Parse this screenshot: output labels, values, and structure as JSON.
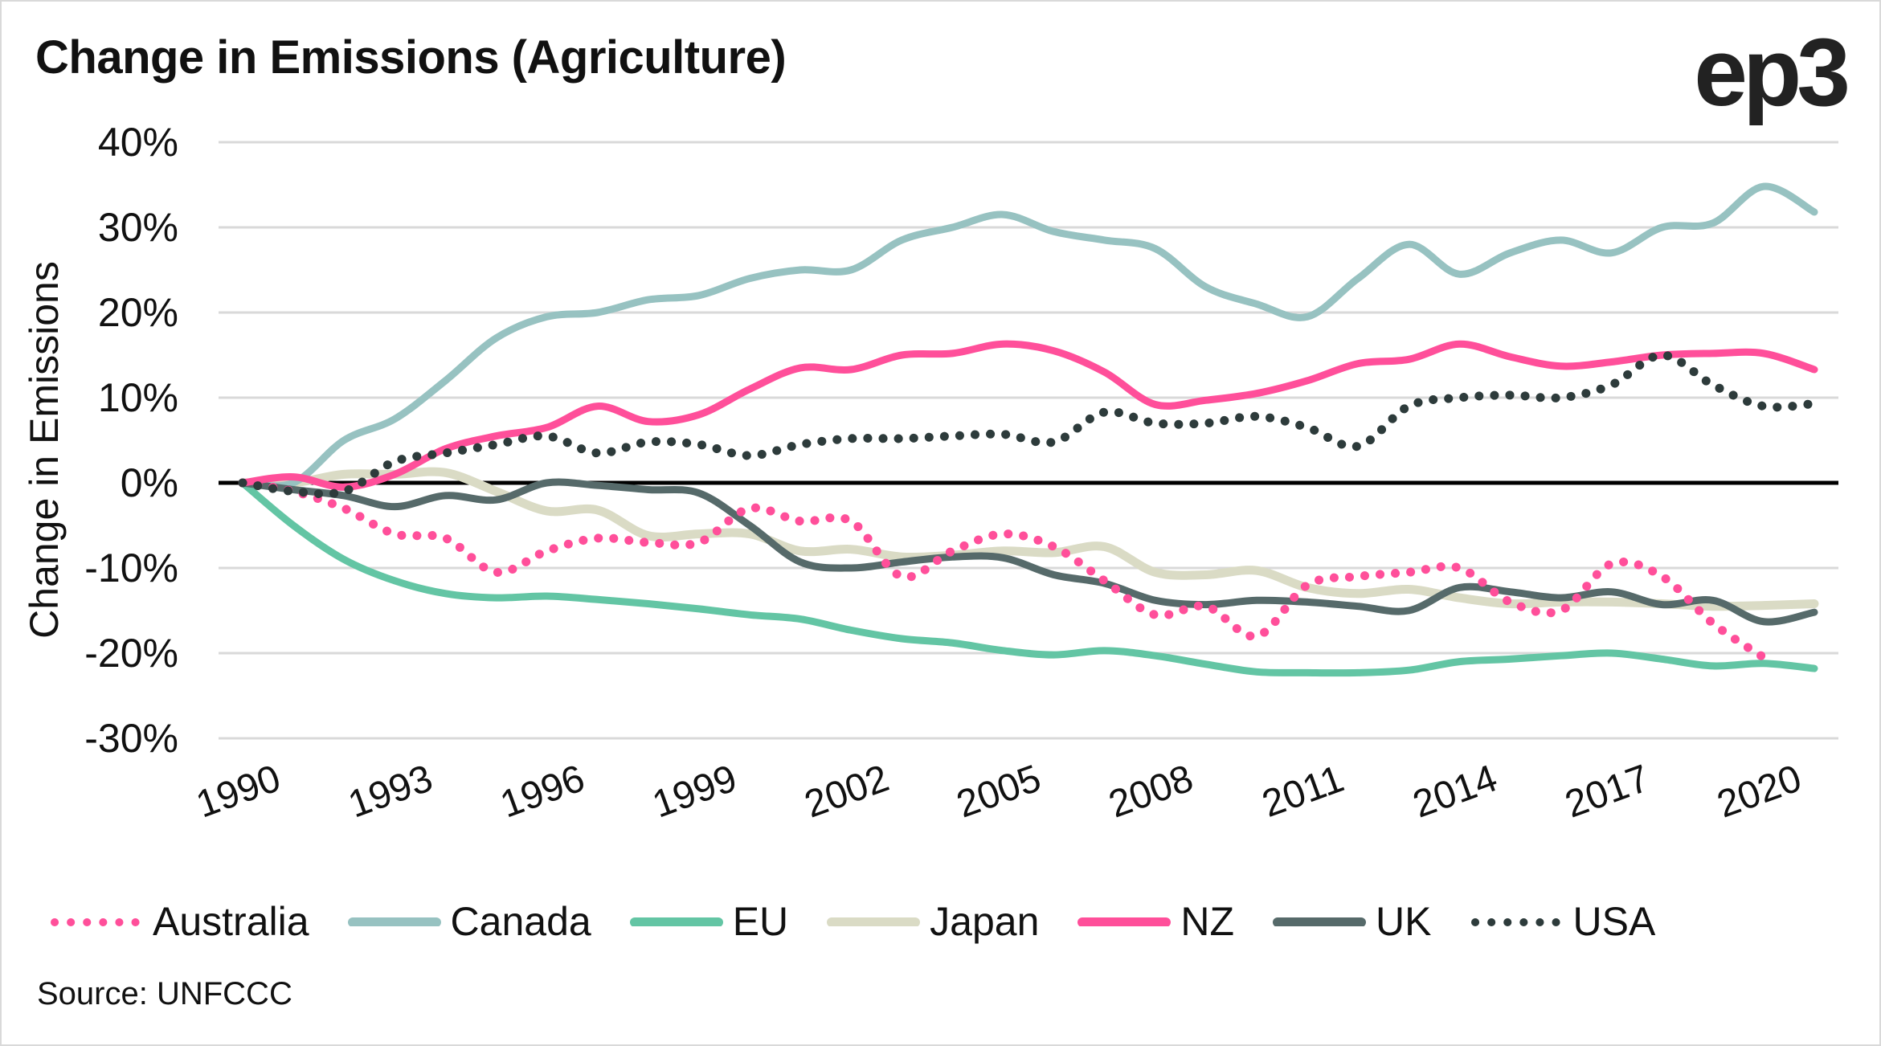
{
  "header": {
    "title": "Change in Emissions (Agriculture)",
    "logo": "ep3"
  },
  "footer": {
    "source": "Source: UNFCCC"
  },
  "chart_data": {
    "type": "line",
    "title": "Change in Emissions (Agriculture)",
    "xlabel": "",
    "ylabel": "Change in Emissions",
    "ylim": [
      -30,
      40
    ],
    "yticks": [
      40,
      30,
      20,
      10,
      0,
      -10,
      -20,
      -30
    ],
    "ytick_labels": [
      "40%",
      "30%",
      "20%",
      "10%",
      "0%",
      "-10%",
      "-20%",
      "-30%"
    ],
    "xlim": [
      1990,
      2021
    ],
    "xtick_labels": [
      "1990",
      "1993",
      "1996",
      "1999",
      "2002",
      "2005",
      "2008",
      "2011",
      "2014",
      "2017",
      "2020"
    ],
    "xticks": [
      1990,
      1993,
      1996,
      1999,
      2002,
      2005,
      2008,
      2011,
      2014,
      2017,
      2020
    ],
    "grid": true,
    "legend_position": "bottom",
    "unit": "%",
    "x": [
      1990,
      1991,
      1992,
      1993,
      1994,
      1995,
      1996,
      1997,
      1998,
      1999,
      2000,
      2001,
      2002,
      2003,
      2004,
      2005,
      2006,
      2007,
      2008,
      2009,
      2010,
      2011,
      2012,
      2013,
      2014,
      2015,
      2016,
      2017,
      2018,
      2019,
      2020,
      2021
    ],
    "series": [
      {
        "name": "Australia",
        "color": "#FF4F9A",
        "style": "dotted",
        "values": [
          0,
          -1,
          -3,
          -6,
          -6.5,
          -10.5,
          -8,
          -6.5,
          -7,
          -7,
          -3,
          -4.5,
          -4.5,
          -11,
          -8,
          -6,
          -7.5,
          -11.5,
          -15.5,
          -14.5,
          -18,
          -12,
          -11,
          -10.5,
          -10,
          -14,
          -15,
          -9.5,
          -11,
          -16.5,
          -20.5,
          null
        ]
      },
      {
        "name": "Canada",
        "color": "#97C2C1",
        "style": "solid",
        "values": [
          0,
          0,
          5,
          7.5,
          12,
          17,
          19.5,
          20,
          21.5,
          22,
          24,
          25,
          25,
          28.5,
          30,
          31.5,
          29.5,
          28.5,
          27.5,
          23,
          21,
          19.5,
          24,
          28,
          24.5,
          27,
          28.5,
          27,
          30,
          30.5,
          34.8,
          31.8
        ]
      },
      {
        "name": "EU",
        "color": "#63C5A4",
        "style": "solid",
        "values": [
          0,
          -5,
          -9,
          -11.5,
          -13,
          -13.5,
          -13.3,
          -13.7,
          -14.2,
          -14.8,
          -15.5,
          -16,
          -17.3,
          -18.3,
          -18.8,
          -19.7,
          -20.2,
          -19.7,
          -20.3,
          -21.3,
          -22.2,
          -22.3,
          -22.3,
          -22,
          -21,
          -20.7,
          -20.3,
          -20,
          -20.7,
          -21.5,
          -21.2,
          -21.8
        ]
      },
      {
        "name": "Japan",
        "color": "#DADBC5",
        "style": "solid",
        "values": [
          0,
          0,
          1,
          1,
          1.2,
          -1,
          -3.3,
          -3.2,
          -6.2,
          -6,
          -6,
          -8,
          -7.8,
          -8.7,
          -8.5,
          -8,
          -8.2,
          -7.5,
          -10.5,
          -10.8,
          -10.3,
          -12.3,
          -13,
          -12.5,
          -13.5,
          -14.2,
          -14,
          -14,
          -14.2,
          -14.5,
          -14.4,
          -14.2
        ]
      },
      {
        "name": "NZ",
        "color": "#FF4F9A",
        "style": "solid",
        "values": [
          0,
          0.7,
          -0.5,
          1,
          4,
          5.5,
          6.5,
          9,
          7.2,
          8,
          11,
          13.5,
          13.3,
          15,
          15.2,
          16.3,
          15.5,
          13,
          9.2,
          9.7,
          10.5,
          12,
          14,
          14.5,
          16.3,
          14.8,
          13.7,
          14.2,
          15,
          15.2,
          15.2,
          13.3
        ]
      },
      {
        "name": "UK",
        "color": "#566A6A",
        "style": "solid",
        "values": [
          0,
          -0.8,
          -1.5,
          -2.8,
          -1.5,
          -2,
          0,
          -0.3,
          -0.8,
          -1.2,
          -5,
          -9.3,
          -10,
          -9.3,
          -8.7,
          -8.8,
          -10.8,
          -11.8,
          -13.8,
          -14.3,
          -13.8,
          -14,
          -14.5,
          -15,
          -12.3,
          -12.8,
          -13.5,
          -12.8,
          -14.3,
          -13.8,
          -16.3,
          -15.2
        ]
      },
      {
        "name": "USA",
        "color": "#2D3B3B",
        "style": "dotted",
        "values": [
          0,
          -1,
          -1,
          2.5,
          3.5,
          4.5,
          5.5,
          3.5,
          4.8,
          4.5,
          3.2,
          4.5,
          5.2,
          5.2,
          5.5,
          5.7,
          4.8,
          8.3,
          7,
          7,
          7.8,
          6.5,
          4.3,
          9,
          10,
          10.3,
          10,
          11.5,
          15,
          11.5,
          9,
          9.3
        ]
      }
    ]
  }
}
